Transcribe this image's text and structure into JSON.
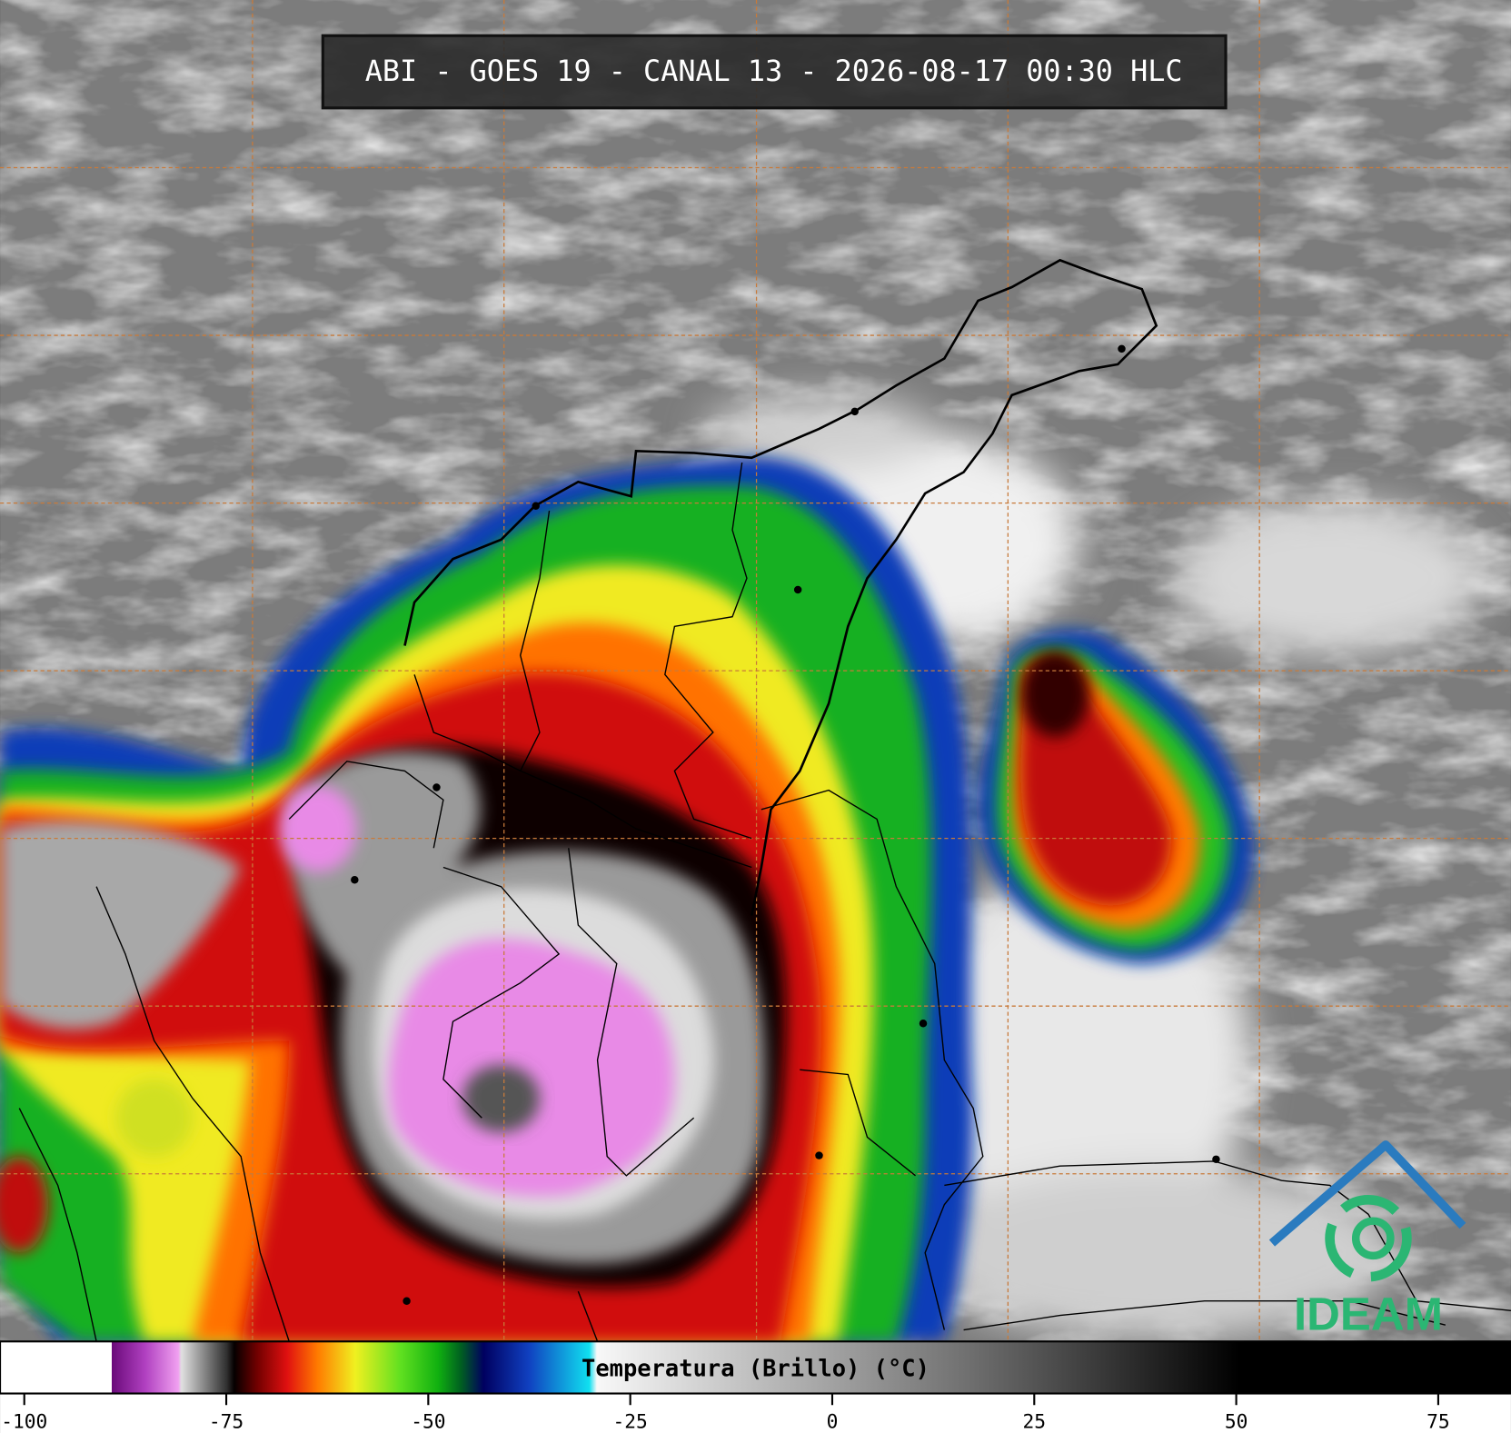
{
  "title": "ABI - GOES 19 - CANAL 13 - 2026-08-17 00:30 HLC",
  "colorbar": {
    "label": "Temperatura (Brillo) (°C)",
    "range": [
      -103,
      84
    ],
    "ticks": [
      -100,
      -75,
      -50,
      -25,
      0,
      25,
      50,
      75
    ]
  },
  "logo": {
    "text": "IDEAM"
  }
}
